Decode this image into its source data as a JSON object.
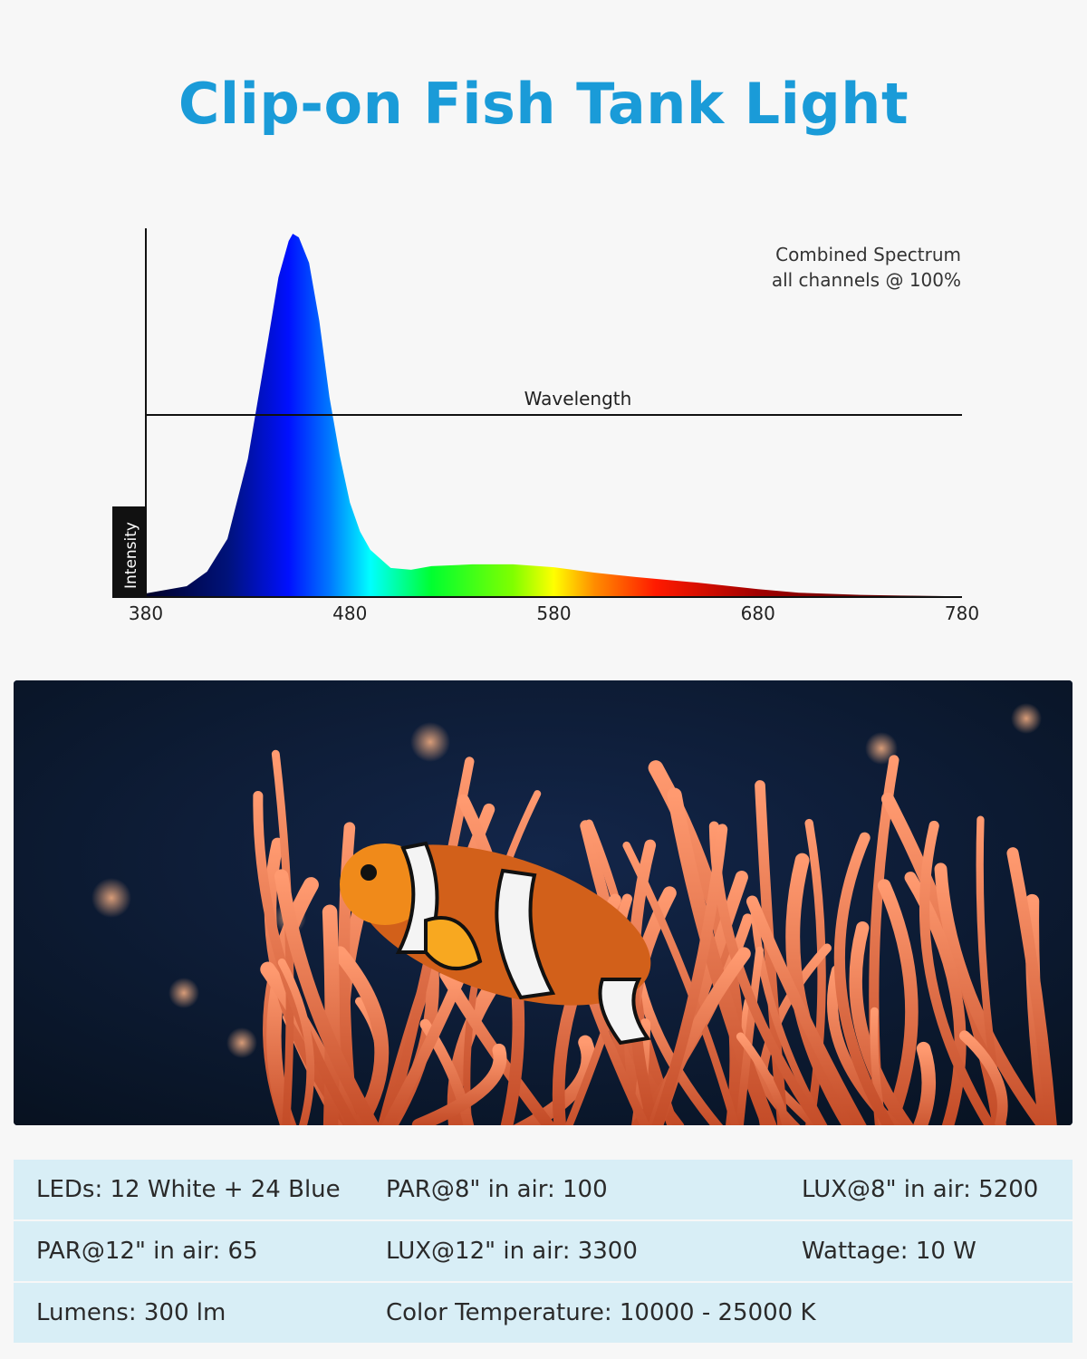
{
  "title": "Clip-on Fish Tank Light",
  "chart_data": {
    "type": "area",
    "title": "",
    "annotation": [
      "Combined Spectrum",
      "all channels @ 100%"
    ],
    "xlabel": "Wavelength",
    "ylabel": "Intensity",
    "xlim": [
      380,
      780
    ],
    "ylim": [
      0,
      1
    ],
    "xticks": [
      "380",
      "480",
      "580",
      "680",
      "780"
    ],
    "x": [
      380,
      390,
      400,
      410,
      420,
      430,
      440,
      445,
      450,
      452,
      455,
      460,
      465,
      470,
      475,
      480,
      485,
      490,
      500,
      510,
      520,
      540,
      560,
      580,
      600,
      620,
      650,
      680,
      700,
      730,
      750,
      780
    ],
    "values": [
      0.01,
      0.02,
      0.03,
      0.07,
      0.16,
      0.38,
      0.71,
      0.88,
      0.98,
      1.0,
      0.99,
      0.92,
      0.76,
      0.55,
      0.39,
      0.26,
      0.18,
      0.13,
      0.08,
      0.075,
      0.085,
      0.09,
      0.09,
      0.082,
      0.067,
      0.055,
      0.04,
      0.022,
      0.012,
      0.006,
      0.004,
      0.002
    ],
    "grid": false,
    "colors": {
      "380": "#000028",
      "420": "#00127a",
      "450": "#0010ff",
      "470": "#0078ff",
      "490": "#00ffff",
      "520": "#00ff30",
      "560": "#80ff00",
      "580": "#ffff00",
      "600": "#ff8c00",
      "630": "#ff1a00",
      "680": "#a00000",
      "780": "#3a0000"
    }
  },
  "photo": {
    "subject": "clownfish-in-anemone"
  },
  "specs": [
    [
      "LEDs: 12 White + 24 Blue",
      "PAR@8\" in air: 100",
      "LUX@8\" in air: 5200"
    ],
    [
      "PAR@12\" in air: 65",
      "LUX@12\" in air: 3300",
      "Wattage: 10 W"
    ],
    [
      "Lumens: 300 lm",
      "Color Temperature: 10000 - 25000 K",
      ""
    ]
  ],
  "colors": {
    "title": "#1a9bd8",
    "table_bg": "#d8eef6",
    "background": "#f7f7f7"
  }
}
